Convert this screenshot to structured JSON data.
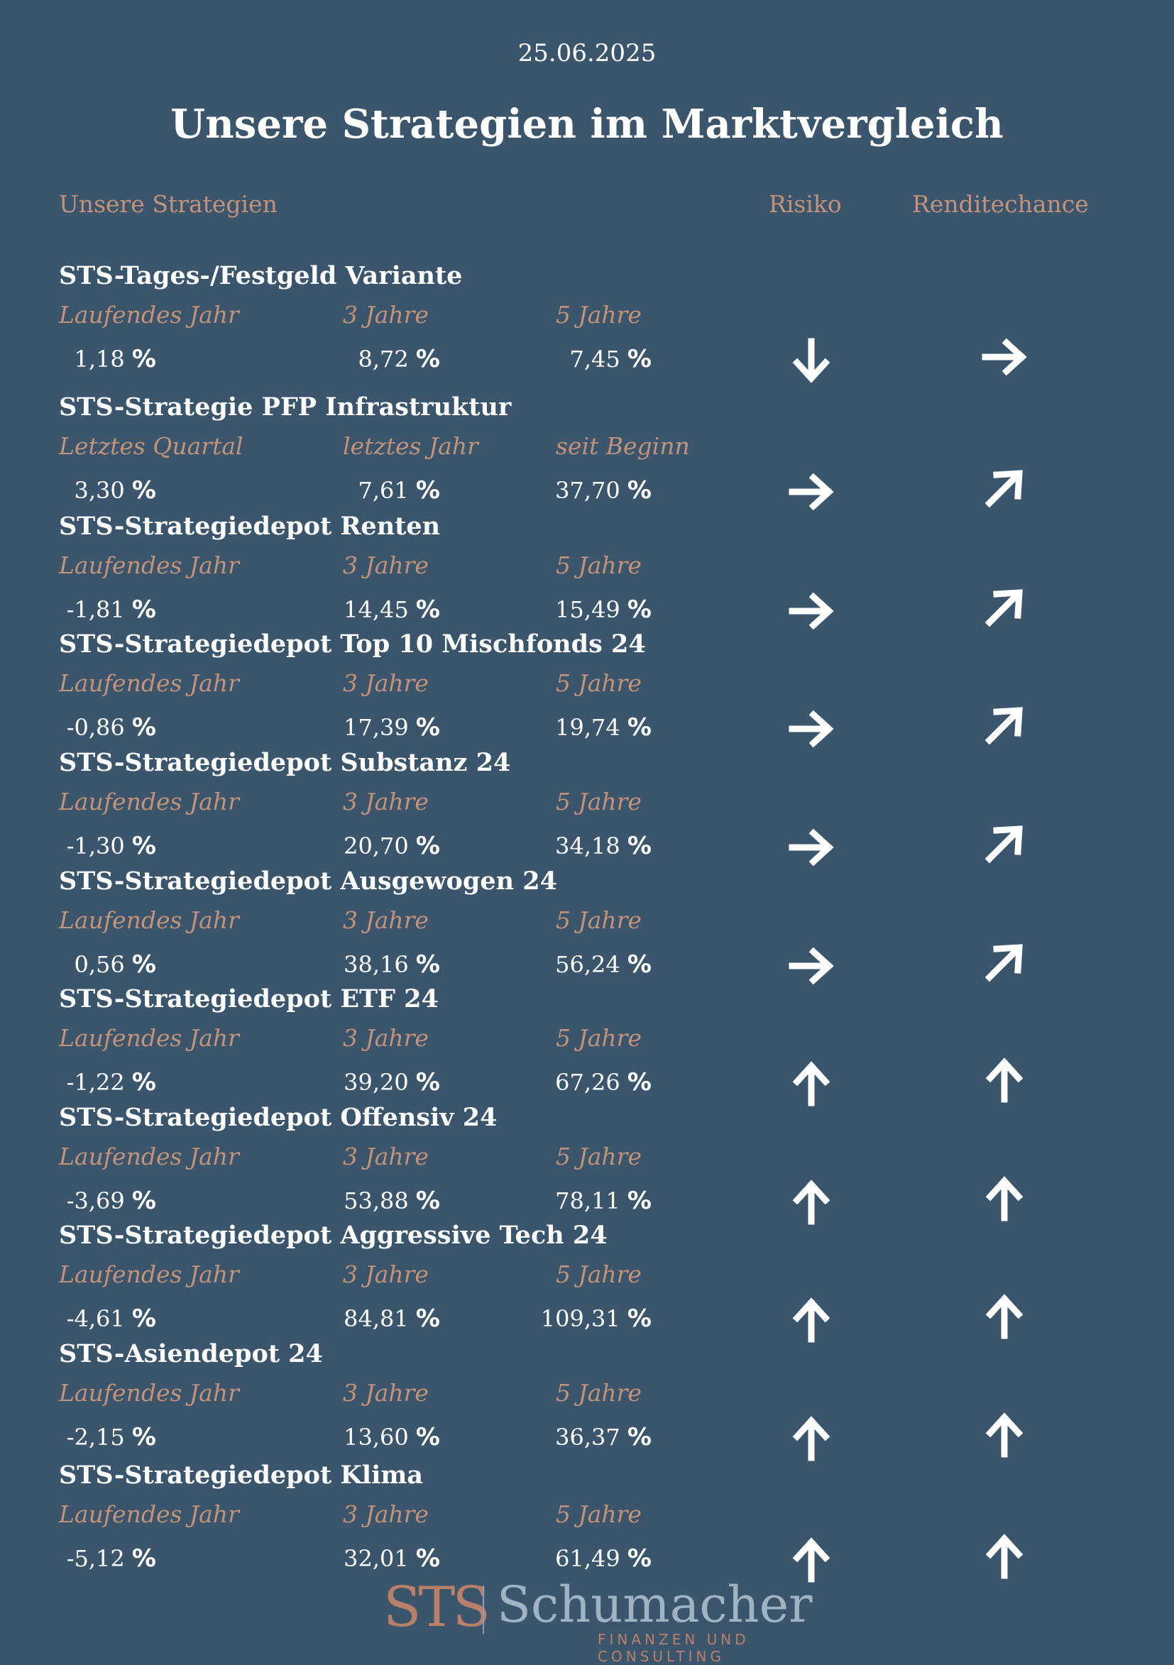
{
  "date": "25.06.2025",
  "title": "Unsere Strategien im Marktvergleich",
  "header": {
    "strategies": "Unsere Strategien",
    "risk": "Risiko",
    "return": "Renditechance"
  },
  "percent_sign": "%",
  "strategies": [
    {
      "name": "STS-Tages-/Festgeld Variante",
      "labels": [
        "Laufendes Jahr",
        "3 Jahre",
        "5 Jahre"
      ],
      "values": [
        "1,18",
        "8,72",
        "7,45"
      ],
      "risk": "down",
      "return": "right"
    },
    {
      "name": "STS-Strategie PFP Infrastruktur",
      "labels": [
        "Letztes Quartal",
        "letztes Jahr",
        "seit Beginn"
      ],
      "values": [
        "3,30",
        "7,61",
        "37,70"
      ],
      "risk": "right",
      "return": "up-right"
    },
    {
      "name": "STS-Strategiedepot Renten",
      "labels": [
        "Laufendes Jahr",
        "3 Jahre",
        "5 Jahre"
      ],
      "values": [
        "-1,81",
        "14,45",
        "15,49"
      ],
      "risk": "right",
      "return": "up-right"
    },
    {
      "name": "STS-Strategiedepot Top 10 Mischfonds 24",
      "labels": [
        "Laufendes Jahr",
        "3 Jahre",
        "5 Jahre"
      ],
      "values": [
        "-0,86",
        "17,39",
        "19,74"
      ],
      "risk": "right",
      "return": "up-right"
    },
    {
      "name": "STS-Strategiedepot Substanz 24",
      "labels": [
        "Laufendes Jahr",
        "3 Jahre",
        "5 Jahre"
      ],
      "values": [
        "-1,30",
        "20,70",
        "34,18"
      ],
      "risk": "right",
      "return": "up-right"
    },
    {
      "name": "STS-Strategiedepot Ausgewogen 24",
      "labels": [
        "Laufendes Jahr",
        "3 Jahre",
        "5 Jahre"
      ],
      "values": [
        "0,56",
        "38,16",
        "56,24"
      ],
      "risk": "right",
      "return": "up-right"
    },
    {
      "name": "STS-Strategiedepot ETF 24",
      "labels": [
        "Laufendes Jahr",
        "3 Jahre",
        "5 Jahre"
      ],
      "values": [
        "-1,22",
        "39,20",
        "67,26"
      ],
      "risk": "up",
      "return": "up"
    },
    {
      "name": "STS-Strategiedepot Offensiv 24",
      "labels": [
        "Laufendes Jahr",
        "3 Jahre",
        "5 Jahre"
      ],
      "values": [
        "-3,69",
        "53,88",
        "78,11"
      ],
      "risk": "up",
      "return": "up"
    },
    {
      "name": "STS-Strategiedepot Aggressive Tech 24",
      "labels": [
        "Laufendes Jahr",
        "3 Jahre",
        "5 Jahre"
      ],
      "values": [
        "-4,61",
        "84,81",
        "109,31"
      ],
      "risk": "up",
      "return": "up"
    },
    {
      "name": "STS-Asiendepot 24",
      "labels": [
        "Laufendes Jahr",
        "3 Jahre",
        "5 Jahre"
      ],
      "values": [
        "-2,15",
        "13,60",
        "36,37"
      ],
      "risk": "up",
      "return": "up"
    },
    {
      "name": "STS-Strategiedepot Klima",
      "labels": [
        "Laufendes Jahr",
        "3 Jahre",
        "5 Jahre"
      ],
      "values": [
        "-5,12",
        "32,01",
        "61,49"
      ],
      "risk": "up",
      "return": "up"
    }
  ],
  "logo": {
    "mark": "STS",
    "name": "Schumacher",
    "tagline": "FINANZEN UND CONSULTING"
  },
  "colors": {
    "background": "#3b566c",
    "accent": "#c29279",
    "text": "#ffffff"
  }
}
